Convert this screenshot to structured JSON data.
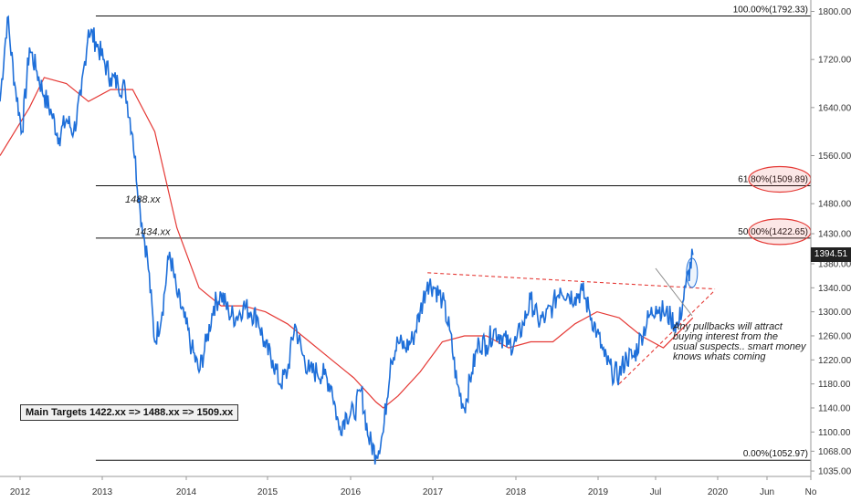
{
  "chart_data": {
    "type": "line",
    "x_axis": {
      "ticks": [
        "2012",
        "2013",
        "2014",
        "2015",
        "2016",
        "2017",
        "2018",
        "2019",
        "Jul",
        "2020",
        "Jun",
        "No"
      ],
      "range": [
        "2011-09",
        "2020-11"
      ]
    },
    "y_axis": {
      "ticks": [
        1800,
        1720,
        1640,
        1560,
        1480,
        1430,
        1380,
        1340,
        1300,
        1260,
        1220,
        1180,
        1140,
        1100,
        1068,
        1035
      ],
      "tick_labels": [
        "1800.00",
        "1720.00",
        "1640.00",
        "1560.00",
        "1480.00",
        "1430.00",
        "1380.00",
        "1340.00",
        "1300.00",
        "1260.00",
        "1220.00",
        "1180.00",
        "1140.00",
        "1100.00",
        "1068.00",
        "1035.00"
      ],
      "range": [
        1026,
        1819
      ]
    },
    "grid": false,
    "last_price": "1394.51",
    "series": [
      {
        "name": "",
        "color": "#1e6fd9",
        "x": [
          "2011-09",
          "2011-10",
          "2011-11",
          "2011-12",
          "2012-01",
          "2012-02",
          "2012-03",
          "2012-04",
          "2012-05",
          "2012-06",
          "2012-07",
          "2012-08",
          "2012-09",
          "2012-10",
          "2012-11",
          "2012-12",
          "2013-01",
          "2013-02",
          "2013-03",
          "2013-04",
          "2013-05",
          "2013-06",
          "2013-07",
          "2013-08",
          "2013-09",
          "2013-10",
          "2013-11",
          "2013-12",
          "2014-01",
          "2014-02",
          "2014-03",
          "2014-04",
          "2014-05",
          "2014-06",
          "2014-07",
          "2014-08",
          "2014-09",
          "2014-10",
          "2014-11",
          "2014-12",
          "2015-01",
          "2015-02",
          "2015-03",
          "2015-04",
          "2015-05",
          "2015-06",
          "2015-07",
          "2015-08",
          "2015-09",
          "2015-10",
          "2015-11",
          "2015-12",
          "2016-01",
          "2016-02",
          "2016-03",
          "2016-04",
          "2016-05",
          "2016-06",
          "2016-07",
          "2016-08",
          "2016-09",
          "2016-10",
          "2016-11",
          "2016-12",
          "2017-01",
          "2017-02",
          "2017-03",
          "2017-04",
          "2017-05",
          "2017-06",
          "2017-07",
          "2017-08",
          "2017-09",
          "2017-10",
          "2017-11",
          "2017-12",
          "2018-01",
          "2018-02",
          "2018-03",
          "2018-04",
          "2018-05",
          "2018-06",
          "2018-07",
          "2018-08",
          "2018-09",
          "2018-10",
          "2018-11",
          "2018-12",
          "2019-01",
          "2019-02",
          "2019-03",
          "2019-04",
          "2019-05",
          "2019-06",
          "2019-07"
        ],
        "values": [
          1650,
          1790,
          1680,
          1600,
          1740,
          1700,
          1660,
          1630,
          1590,
          1620,
          1600,
          1660,
          1770,
          1750,
          1720,
          1690,
          1680,
          1670,
          1595,
          1470,
          1390,
          1250,
          1300,
          1400,
          1330,
          1290,
          1240,
          1200,
          1250,
          1310,
          1330,
          1300,
          1290,
          1310,
          1300,
          1290,
          1240,
          1220,
          1180,
          1200,
          1280,
          1230,
          1200,
          1200,
          1195,
          1175,
          1105,
          1130,
          1130,
          1170,
          1090,
          1062,
          1100,
          1220,
          1250,
          1240,
          1255,
          1300,
          1350,
          1340,
          1320,
          1270,
          1180,
          1140,
          1200,
          1250,
          1245,
          1270,
          1260,
          1245,
          1250,
          1280,
          1320,
          1285,
          1290,
          1310,
          1340,
          1330,
          1325,
          1335,
          1300,
          1265,
          1225,
          1200,
          1195,
          1225,
          1225,
          1260,
          1290,
          1310,
          1300,
          1290,
          1275,
          1340,
          1394.51
        ]
      },
      {
        "name": "",
        "color": "#e53935",
        "x": [
          "2011-09",
          "2012-01",
          "2012-03",
          "2012-06",
          "2012-09",
          "2012-12",
          "2013-03",
          "2013-06",
          "2013-09",
          "2013-12",
          "2014-03",
          "2014-06",
          "2014-09",
          "2014-12",
          "2015-03",
          "2015-06",
          "2015-09",
          "2015-12",
          "2016-01",
          "2016-03",
          "2016-06",
          "2016-09",
          "2016-12",
          "2017-03",
          "2017-06",
          "2017-09",
          "2017-12",
          "2018-03",
          "2018-06",
          "2018-09",
          "2018-12",
          "2019-03",
          "2019-05",
          "2019-07"
        ],
        "values": [
          1560,
          1640,
          1690,
          1680,
          1650,
          1670,
          1670,
          1600,
          1440,
          1340,
          1310,
          1310,
          1300,
          1280,
          1250,
          1220,
          1190,
          1150,
          1140,
          1160,
          1200,
          1250,
          1260,
          1260,
          1240,
          1250,
          1250,
          1280,
          1300,
          1290,
          1260,
          1240,
          1265,
          1290
        ]
      }
    ],
    "fib_levels": [
      {
        "label": "100.00%(1792.33)",
        "value": 1792.33
      },
      {
        "label": "61.80%(1509.89)",
        "value": 1509.89
      },
      {
        "label": "50.00%(1422.65)",
        "value": 1422.65
      },
      {
        "label": "0.00%(1052.97)",
        "value": 1052.97
      }
    ],
    "annotations": {
      "level_1488": "1488.xx",
      "level_1434": "1434.xx",
      "note_lines": [
        "Any pullbacks will attract",
        "buying interest from the",
        "usual suspects.. smart money",
        "knows whats coming"
      ],
      "targets": "Main Targets 1422.xx => 1488.xx => 1509.xx"
    },
    "trendlines": {
      "upper": [
        [
          "2016-07",
          1365
        ],
        [
          "2019-10",
          1338
        ]
      ],
      "lower": [
        [
          "2018-09",
          1180
        ],
        [
          "2019-10",
          1336
        ]
      ]
    },
    "highlight_color": "#e53935"
  }
}
